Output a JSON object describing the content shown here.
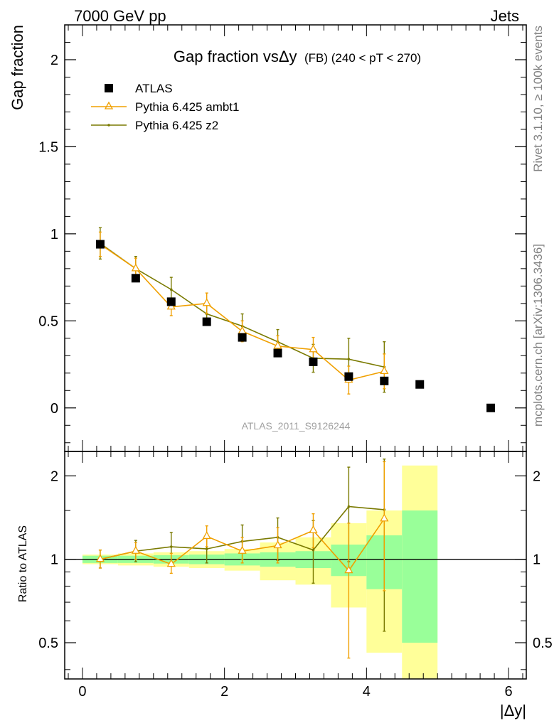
{
  "header": {
    "left": "7000 GeV pp",
    "right": "Jets"
  },
  "side": {
    "rivet": "Rivet 3.1.10, ≥ 100k events",
    "mcplots": "mcplots.cern.ch [arXiv:1306.3436]"
  },
  "chart_data": [
    {
      "type": "scatter",
      "title": "Gap fraction vsΔy (FB) (240 < pT < 270)",
      "title_main": "Gap fraction vsΔy",
      "title_sub": "(FB) (240 < pT < 270)",
      "xlabel": "|Δy|",
      "ylabel": "Gap fraction",
      "watermark": "ATLAS_2011_S9126244",
      "xlim": [
        -0.25,
        6.25
      ],
      "ylim": [
        -0.25,
        2.2
      ],
      "yticks": [
        0,
        0.5,
        1,
        1.5,
        2
      ],
      "ytick_labels": [
        "0",
        "0.5",
        "1",
        "1.5",
        "2"
      ],
      "legend_position": "top-left",
      "series": [
        {
          "name": "ATLAS",
          "color": "#000000",
          "marker": "square",
          "x": [
            0.25,
            0.75,
            1.25,
            1.75,
            2.25,
            2.75,
            3.25,
            3.75,
            4.25,
            4.75,
            5.75
          ],
          "y": [
            0.94,
            0.745,
            0.61,
            0.495,
            0.405,
            0.315,
            0.265,
            0.18,
            0.155,
            0.135,
            0.0
          ],
          "yerr": [
            0.02,
            0.02,
            0.02,
            0.02,
            0.02,
            0.02,
            0.02,
            0.02,
            0.02,
            0.0,
            0.0
          ]
        },
        {
          "name": "Pythia 6.425 ambt1",
          "color": "#f0a000",
          "marker": "triangle",
          "x": [
            0.25,
            0.75,
            1.25,
            1.75,
            2.25,
            2.75,
            3.25,
            3.75,
            4.25
          ],
          "y": [
            0.94,
            0.8,
            0.58,
            0.6,
            0.44,
            0.355,
            0.335,
            0.16,
            0.21
          ],
          "yerr": [
            0.07,
            0.06,
            0.05,
            0.06,
            0.06,
            0.06,
            0.07,
            0.08,
            0.1
          ]
        },
        {
          "name": "Pythia 6.425 z2",
          "color": "#7a7a00",
          "marker": "dot",
          "x": [
            0.25,
            0.75,
            1.25,
            1.75,
            2.25,
            2.75,
            3.25,
            3.75,
            4.25
          ],
          "y": [
            0.945,
            0.8,
            0.68,
            0.54,
            0.47,
            0.38,
            0.285,
            0.28,
            0.235
          ],
          "yerr": [
            0.09,
            0.07,
            0.07,
            0.06,
            0.07,
            0.07,
            0.08,
            0.12,
            0.145
          ]
        }
      ]
    },
    {
      "type": "scatter",
      "ylabel": "Ratio to ATLAS",
      "xlabel": "|Δy|",
      "xlim": [
        -0.25,
        6.25
      ],
      "ylim": [
        0.37,
        2.45
      ],
      "yticks": [
        0.5,
        1,
        2
      ],
      "ytick_labels": [
        "0.5",
        "1",
        "2"
      ],
      "xticks": [
        0,
        2,
        4,
        6
      ],
      "xtick_labels": [
        "0",
        "2",
        "4",
        "6"
      ],
      "reference_line": 1,
      "band_colors": {
        "outer": "#ffff99",
        "inner": "#99ff99"
      },
      "bands": [
        {
          "x": [
            0.0,
            0.5
          ],
          "inner": [
            0.97,
            1.03
          ],
          "outer": [
            0.96,
            1.04
          ]
        },
        {
          "x": [
            0.5,
            1.0
          ],
          "inner": [
            0.97,
            1.03
          ],
          "outer": [
            0.95,
            1.05
          ]
        },
        {
          "x": [
            1.0,
            1.5
          ],
          "inner": [
            0.965,
            1.035
          ],
          "outer": [
            0.94,
            1.06
          ]
        },
        {
          "x": [
            1.5,
            2.0
          ],
          "inner": [
            0.96,
            1.04
          ],
          "outer": [
            0.93,
            1.07
          ]
        },
        {
          "x": [
            2.0,
            2.5
          ],
          "inner": [
            0.95,
            1.05
          ],
          "outer": [
            0.91,
            1.09
          ]
        },
        {
          "x": [
            2.5,
            3.0
          ],
          "inner": [
            0.94,
            1.06
          ],
          "outer": [
            0.84,
            1.15
          ]
        },
        {
          "x": [
            3.0,
            3.5
          ],
          "inner": [
            0.93,
            1.07
          ],
          "outer": [
            0.81,
            1.2
          ]
        },
        {
          "x": [
            3.5,
            4.0
          ],
          "inner": [
            0.87,
            1.13
          ],
          "outer": [
            0.67,
            1.35
          ]
        },
        {
          "x": [
            4.0,
            4.5
          ],
          "inner": [
            0.78,
            1.22
          ],
          "outer": [
            0.46,
            1.5
          ]
        },
        {
          "x": [
            4.5,
            5.0
          ],
          "inner": [
            0.5,
            1.5
          ],
          "outer": [
            0.37,
            2.18
          ]
        }
      ],
      "series": [
        {
          "name": "Pythia 6.425 ambt1",
          "color": "#f0a000",
          "marker": "triangle",
          "x": [
            0.25,
            0.75,
            1.25,
            1.75,
            2.25,
            2.75,
            3.25,
            3.75,
            4.25
          ],
          "y": [
            1.0,
            1.07,
            0.96,
            1.21,
            1.07,
            1.12,
            1.27,
            0.91,
            1.4
          ],
          "ylow": [
            0.93,
            1.0,
            0.89,
            1.11,
            0.97,
            0.97,
            1.1,
            0.44,
            0.77
          ],
          "yhigh": [
            1.08,
            1.15,
            1.05,
            1.32,
            1.2,
            1.3,
            1.46,
            1.35,
            2.25
          ]
        },
        {
          "name": "Pythia 6.425 z2",
          "color": "#7a7a00",
          "marker": "dot",
          "x": [
            0.25,
            0.75,
            1.25,
            1.75,
            2.25,
            2.75,
            3.25,
            3.75,
            4.25
          ],
          "y": [
            1.0,
            1.07,
            1.11,
            1.09,
            1.16,
            1.2,
            1.08,
            1.55,
            1.51
          ],
          "ylow": [
            0.93,
            0.98,
            0.98,
            0.97,
            1.0,
            0.99,
            0.82,
            0.98,
            0.55
          ],
          "yhigh": [
            1.08,
            1.17,
            1.25,
            1.21,
            1.33,
            1.41,
            1.38,
            2.15,
            2.3
          ]
        }
      ]
    }
  ]
}
